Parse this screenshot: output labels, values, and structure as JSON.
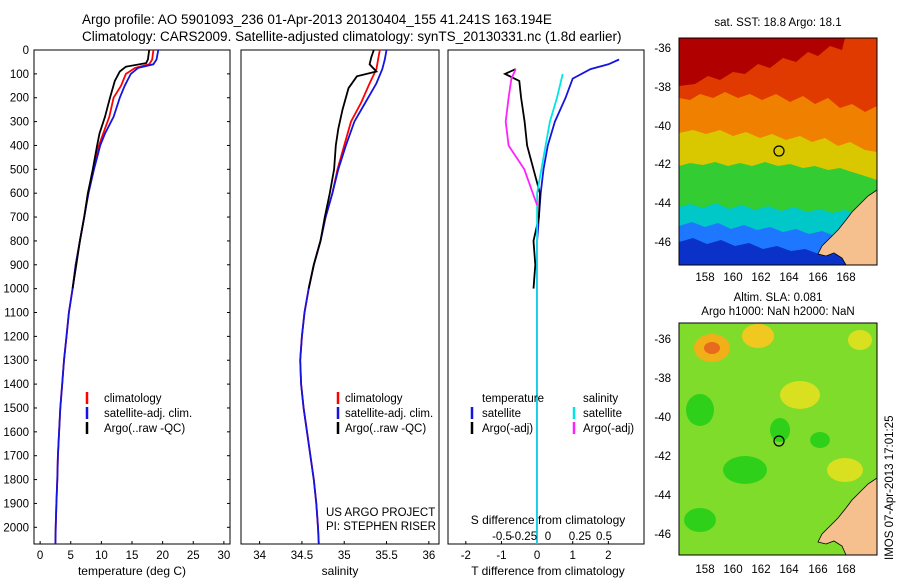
{
  "header": {
    "line1": "Argo profile: AO 5901093_236 01-Apr-2013 20130404_155 41.241S 163.194E",
    "line2": "Climatology: CARS2009. Satellite-adjusted climatology: synTS_20130331.nc (1.8d earlier)"
  },
  "side_label": "IMOS 07-Apr-2013 17:01:25",
  "depth_axis": {
    "ticks": [
      0,
      100,
      200,
      300,
      400,
      500,
      600,
      700,
      800,
      900,
      1000,
      1100,
      1200,
      1300,
      1400,
      1500,
      1600,
      1700,
      1800,
      1900,
      2000
    ],
    "range": [
      0,
      2070
    ]
  },
  "colors": {
    "climatology": "#ff0000",
    "satellite": "#1414e0",
    "argo": "#000000",
    "sal_satellite": "#00e5e5",
    "sal_argo": "#ff22ff"
  },
  "panel_temp": {
    "xlabel": "temperature (deg C)",
    "xticks": [
      0,
      5,
      10,
      15,
      20,
      25,
      30
    ],
    "legend": [
      "climatology",
      "satellite-adj. clim.",
      "Argo(..raw -QC)"
    ]
  },
  "panel_sal": {
    "xlabel": "salinity",
    "xticks": [
      "34",
      "34.5",
      "35",
      "35.5",
      "36"
    ],
    "legend": [
      "climatology",
      "satellite-adj. clim.",
      "Argo(..raw -QC)"
    ],
    "note1": "US ARGO PROJECT",
    "note2": "PI: STEPHEN RISER"
  },
  "panel_diff": {
    "xlabel": "T difference from climatology",
    "top_label": "S difference from climatology",
    "xticks": [
      "-2",
      "-1",
      "0",
      "1",
      "2"
    ],
    "top_ticks": [
      "-0.5",
      "-0.25",
      "0",
      "0.25",
      "0.5"
    ],
    "legend_head_t": "temperature",
    "legend_head_s": "salinity",
    "legend_t": [
      "satellite",
      "Argo(-adj)"
    ],
    "legend_s": [
      "satellite",
      "Argo(-adj)"
    ]
  },
  "map_sst": {
    "title": "sat. SST: 18.8  Argo: 18.1",
    "yticks": [
      "-36",
      "-38",
      "-40",
      "-42",
      "-44",
      "-46"
    ],
    "xticks": [
      "158",
      "160",
      "162",
      "164",
      "166",
      "168"
    ]
  },
  "map_sla": {
    "title1": "Altim. SLA: 0.081",
    "title2": "Argo h1000: NaN h2000: NaN",
    "yticks": [
      "-36",
      "-38",
      "-40",
      "-42",
      "-44",
      "-46"
    ],
    "xticks": [
      "158",
      "160",
      "162",
      "164",
      "166",
      "168"
    ]
  },
  "chart_data": [
    {
      "type": "line",
      "xlabel": "temperature (deg C)",
      "ylabel": "",
      "xlim": [
        -1,
        31
      ],
      "ylim": [
        2070,
        0
      ],
      "series": [
        {
          "name": "climatology",
          "points": [
            [
              18.5,
              0
            ],
            [
              18.3,
              40
            ],
            [
              17.8,
              60
            ],
            [
              15.5,
              75
            ],
            [
              14,
              100
            ],
            [
              13.2,
              150
            ],
            [
              12,
              200
            ],
            [
              11.3,
              280
            ],
            [
              10.3,
              350
            ],
            [
              9.6,
              400
            ],
            [
              8.7,
              500
            ],
            [
              7.8,
              600
            ],
            [
              7.2,
              700
            ],
            [
              6.5,
              800
            ],
            [
              5.8,
              900
            ],
            [
              5.3,
              1000
            ],
            [
              4.7,
              1100
            ],
            [
              4.3,
              1200
            ],
            [
              3.9,
              1300
            ],
            [
              3.6,
              1400
            ],
            [
              3.3,
              1500
            ],
            [
              3.1,
              1600
            ],
            [
              2.9,
              1700
            ],
            [
              2.8,
              1800
            ],
            [
              2.65,
              1900
            ],
            [
              2.55,
              2000
            ],
            [
              2.5,
              2070
            ]
          ]
        },
        {
          "name": "satellite-adj. clim.",
          "points": [
            [
              19.3,
              0
            ],
            [
              19,
              40
            ],
            [
              18.5,
              60
            ],
            [
              16,
              75
            ],
            [
              14.8,
              100
            ],
            [
              13.8,
              150
            ],
            [
              13,
              200
            ],
            [
              12,
              280
            ],
            [
              10.6,
              350
            ],
            [
              9.8,
              400
            ],
            [
              8.8,
              500
            ],
            [
              7.9,
              600
            ],
            [
              7.2,
              700
            ],
            [
              6.5,
              800
            ],
            [
              5.8,
              900
            ],
            [
              5.3,
              1000
            ],
            [
              4.7,
              1100
            ],
            [
              4.3,
              1200
            ],
            [
              3.9,
              1300
            ],
            [
              3.6,
              1400
            ],
            [
              3.3,
              1500
            ],
            [
              3.1,
              1600
            ],
            [
              2.9,
              1700
            ],
            [
              2.8,
              1800
            ],
            [
              2.65,
              1900
            ],
            [
              2.55,
              2000
            ],
            [
              2.5,
              2070
            ]
          ]
        },
        {
          "name": "Argo(..raw -QC)",
          "points": [
            [
              17.8,
              0
            ],
            [
              17.6,
              40
            ],
            [
              17.3,
              55
            ],
            [
              14,
              70
            ],
            [
              13,
              90
            ],
            [
              12.2,
              130
            ],
            [
              11.4,
              200
            ],
            [
              10.6,
              280
            ],
            [
              9.7,
              350
            ],
            [
              9.3,
              400
            ],
            [
              8.6,
              500
            ],
            [
              7.8,
              600
            ],
            [
              7.2,
              700
            ],
            [
              6.5,
              800
            ],
            [
              5.9,
              900
            ],
            [
              5.3,
              1000
            ]
          ]
        }
      ]
    },
    {
      "type": "line",
      "xlabel": "salinity",
      "ylabel": "",
      "xlim": [
        33.78,
        36.12
      ],
      "ylim": [
        2070,
        0
      ],
      "series": [
        {
          "name": "climatology",
          "points": [
            [
              35.42,
              0
            ],
            [
              35.4,
              40
            ],
            [
              35.38,
              80
            ],
            [
              35.3,
              140
            ],
            [
              35.2,
              220
            ],
            [
              35.08,
              300
            ],
            [
              35,
              400
            ],
            [
              34.92,
              500
            ],
            [
              34.86,
              600
            ],
            [
              34.78,
              700
            ],
            [
              34.72,
              800
            ],
            [
              34.64,
              900
            ],
            [
              34.58,
              1000
            ],
            [
              34.53,
              1100
            ],
            [
              34.5,
              1200
            ],
            [
              34.48,
              1300
            ],
            [
              34.49,
              1400
            ],
            [
              34.52,
              1500
            ],
            [
              34.56,
              1600
            ],
            [
              34.6,
              1700
            ],
            [
              34.64,
              1800
            ],
            [
              34.67,
              1900
            ],
            [
              34.69,
              2000
            ],
            [
              34.7,
              2070
            ]
          ]
        },
        {
          "name": "satellite-adj. clim.",
          "points": [
            [
              35.5,
              0
            ],
            [
              35.48,
              40
            ],
            [
              35.45,
              80
            ],
            [
              35.38,
              140
            ],
            [
              35.25,
              220
            ],
            [
              35.12,
              300
            ],
            [
              35.02,
              400
            ],
            [
              34.93,
              500
            ],
            [
              34.86,
              600
            ],
            [
              34.78,
              700
            ],
            [
              34.72,
              800
            ],
            [
              34.64,
              900
            ],
            [
              34.58,
              1000
            ],
            [
              34.53,
              1100
            ],
            [
              34.5,
              1200
            ],
            [
              34.48,
              1300
            ],
            [
              34.49,
              1400
            ],
            [
              34.52,
              1500
            ],
            [
              34.56,
              1600
            ],
            [
              34.6,
              1700
            ],
            [
              34.64,
              1800
            ],
            [
              34.67,
              1900
            ],
            [
              34.69,
              2000
            ],
            [
              34.7,
              2070
            ]
          ]
        },
        {
          "name": "Argo(..raw -QC)",
          "points": [
            [
              35.35,
              0
            ],
            [
              35.32,
              30
            ],
            [
              35.3,
              60
            ],
            [
              35.38,
              90
            ],
            [
              35.15,
              110
            ],
            [
              35.05,
              160
            ],
            [
              34.98,
              250
            ],
            [
              34.93,
              330
            ],
            [
              34.9,
              400
            ],
            [
              34.88,
              500
            ],
            [
              34.83,
              600
            ],
            [
              34.77,
              700
            ],
            [
              34.72,
              800
            ],
            [
              34.64,
              900
            ],
            [
              34.58,
              1000
            ]
          ]
        }
      ]
    },
    {
      "type": "line",
      "xlabel": "T difference from climatology",
      "ylabel": "",
      "xlim": [
        -2.5,
        3
      ],
      "ylim": [
        2070,
        0
      ],
      "series": [
        {
          "name": "satellite",
          "points": [
            [
              2.3,
              40
            ],
            [
              2,
              60
            ],
            [
              1.5,
              80
            ],
            [
              1,
              120
            ],
            [
              0.8,
              200
            ],
            [
              0.5,
              300
            ],
            [
              0.3,
              400
            ],
            [
              0.18,
              500
            ],
            [
              0.1,
              600
            ],
            [
              0.05,
              700
            ],
            [
              0,
              800
            ],
            [
              0,
              2070
            ]
          ]
        },
        {
          "name": "Argo(-adj)",
          "points": [
            [
              -0.6,
              80
            ],
            [
              -0.9,
              100
            ],
            [
              -0.5,
              130
            ],
            [
              -0.45,
              200
            ],
            [
              -0.35,
              300
            ],
            [
              -0.28,
              400
            ],
            [
              -0.1,
              500
            ],
            [
              0.08,
              600
            ],
            [
              0.05,
              700
            ],
            [
              -0.1,
              800
            ],
            [
              -0.05,
              900
            ],
            [
              -0.1,
              1000
            ]
          ]
        },
        {
          "name": "satellite (salinity)",
          "points": [
            [
              0.18,
              100
            ],
            [
              0.14,
              200
            ],
            [
              0.09,
              300
            ],
            [
              0.06,
              400
            ],
            [
              0.03,
              500
            ],
            [
              0,
              600
            ],
            [
              0,
              2070
            ]
          ]
        },
        {
          "name": "Argo(-adj) (salinity)",
          "points": [
            [
              -0.15,
              80
            ],
            [
              -0.18,
              120
            ],
            [
              -0.2,
              200
            ],
            [
              -0.22,
              300
            ],
            [
              -0.2,
              400
            ],
            [
              -0.09,
              500
            ],
            [
              -0.03,
              600
            ],
            [
              0,
              650
            ]
          ]
        }
      ]
    }
  ]
}
